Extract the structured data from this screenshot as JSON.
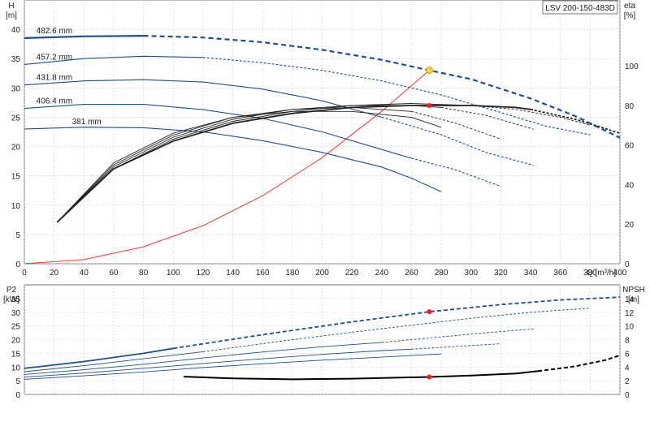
{
  "chart_data": [
    {
      "type": "line",
      "title": "",
      "model": "LSV 200-150-483D",
      "xlabel": "Q [m³/h]",
      "x_unit_label": "Q [m³/h]",
      "ylabel_left_name": "H",
      "ylabel_left_unit": "[m]",
      "ylabel_right_name": "eta",
      "ylabel_right_unit": "[%]",
      "xlim": [
        0,
        400
      ],
      "ylim": [
        0,
        45
      ],
      "ylim_right": [
        0,
        133.3
      ],
      "x_ticks": [
        0,
        20,
        40,
        60,
        80,
        100,
        120,
        140,
        160,
        180,
        200,
        220,
        240,
        260,
        280,
        300,
        320,
        340,
        360,
        380,
        400
      ],
      "y_ticks": [
        0,
        5,
        10,
        15,
        20,
        25,
        30,
        35,
        40
      ],
      "y_ticks_right": [
        0,
        20,
        40,
        60,
        80,
        100
      ],
      "grid": true,
      "head_curves": [
        {
          "name": "482.6 mm",
          "color": "#1f4e8c",
          "bold": true,
          "solid": [
            [
              0,
              38.5
            ],
            [
              40,
              38.8
            ],
            [
              80,
              38.9
            ]
          ],
          "dashed": [
            [
              80,
              38.9
            ],
            [
              120,
              38.6
            ],
            [
              160,
              37.8
            ],
            [
              200,
              36.5
            ],
            [
              240,
              34.8
            ],
            [
              272,
              33.0
            ],
            [
              300,
              31.5
            ],
            [
              340,
              28.2
            ],
            [
              370,
              25.2
            ],
            [
              400,
              21.5
            ]
          ]
        },
        {
          "name": "457.2 mm",
          "color": "#1f4e8c",
          "bold": false,
          "solid": [
            [
              0,
              34.0
            ],
            [
              40,
              35.0
            ],
            [
              80,
              35.4
            ],
            [
              120,
              35.2
            ]
          ],
          "dashed": [
            [
              120,
              35.2
            ],
            [
              160,
              34.3
            ],
            [
              200,
              33.0
            ],
            [
              240,
              31.2
            ],
            [
              280,
              28.8
            ],
            [
              320,
              25.8
            ],
            [
              350,
              23.5
            ],
            [
              380,
              22.0
            ]
          ]
        },
        {
          "name": "431.8 mm",
          "color": "#1f4e8c",
          "bold": false,
          "solid": [
            [
              0,
              30.5
            ],
            [
              40,
              31.2
            ],
            [
              80,
              31.4
            ],
            [
              120,
              31.0
            ],
            [
              160,
              29.8
            ],
            [
              200,
              27.8
            ],
            [
              240,
              25.0
            ]
          ],
          "dashed": [
            [
              240,
              25.0
            ],
            [
              280,
              22.0
            ],
            [
              310,
              19.0
            ],
            [
              342,
              16.8
            ]
          ]
        },
        {
          "name": "406.4 mm",
          "color": "#1f4e8c",
          "bold": false,
          "solid": [
            [
              0,
              26.5
            ],
            [
              40,
              27.2
            ],
            [
              80,
              27.2
            ],
            [
              120,
              26.3
            ],
            [
              160,
              24.8
            ],
            [
              200,
              22.5
            ],
            [
              240,
              19.5
            ],
            [
              260,
              18.0
            ]
          ],
          "dashed": [
            [
              260,
              18.0
            ],
            [
              290,
              16.0
            ],
            [
              320,
              13.2
            ]
          ]
        },
        {
          "name": "381 mm",
          "color": "#1f4e8c",
          "bold": false,
          "solid": [
            [
              0,
              23.0
            ],
            [
              40,
              23.3
            ],
            [
              80,
              23.2
            ],
            [
              120,
              22.5
            ],
            [
              160,
              21.0
            ],
            [
              200,
              19.0
            ],
            [
              240,
              16.5
            ],
            [
              260,
              14.6
            ],
            [
              280,
              12.3
            ]
          ],
          "dashed": []
        }
      ],
      "system_curve": {
        "color": "#ff3333",
        "points": [
          [
            0,
            0
          ],
          [
            40,
            0.7
          ],
          [
            80,
            2.9
          ],
          [
            120,
            6.5
          ],
          [
            160,
            11.6
          ],
          [
            200,
            18.1
          ],
          [
            240,
            26.0
          ],
          [
            272,
            33.0
          ]
        ]
      },
      "duty_point": {
        "x": 272,
        "y": 33.0,
        "color": "#ffd23f"
      },
      "efficiency_curves": [
        {
          "name": "482.6 mm",
          "solid": [
            [
              22,
              21
            ],
            [
              60,
              48
            ],
            [
              100,
              62
            ],
            [
              140,
              71
            ],
            [
              180,
              76
            ],
            [
              220,
              79
            ],
            [
              260,
              80
            ],
            [
              300,
              80
            ],
            [
              330,
              79
            ],
            [
              340,
              78
            ]
          ],
          "dashed": [
            [
              340,
              78
            ],
            [
              370,
              73
            ],
            [
              400,
              66
            ]
          ],
          "bold": true
        },
        {
          "name": "457.2 mm",
          "solid": [
            [
              22,
              21
            ],
            [
              60,
              48
            ],
            [
              100,
              63
            ],
            [
              140,
              72
            ],
            [
              180,
              77
            ],
            [
              220,
              80
            ],
            [
              260,
              81
            ],
            [
              300,
              80
            ]
          ],
          "dashed": [
            [
              300,
              80
            ],
            [
              330,
              78
            ],
            [
              360,
              74
            ],
            [
              380,
              70
            ]
          ],
          "bold": false
        },
        {
          "name": "431.8 mm",
          "solid": [
            [
              22,
              21
            ],
            [
              60,
              49
            ],
            [
              100,
              64
            ],
            [
              140,
              73
            ],
            [
              180,
              78
            ],
            [
              220,
              80
            ],
            [
              260,
              80
            ],
            [
              280,
              79
            ]
          ],
          "dashed": [
            [
              280,
              79
            ],
            [
              310,
              75
            ],
            [
              342,
              68
            ]
          ],
          "bold": false
        },
        {
          "name": "406.4 mm",
          "solid": [
            [
              22,
              21
            ],
            [
              60,
              50
            ],
            [
              100,
              65
            ],
            [
              140,
              74
            ],
            [
              180,
              78
            ],
            [
              220,
              79
            ],
            [
              260,
              77
            ]
          ],
          "dashed": [
            [
              260,
              77
            ],
            [
              290,
              71
            ],
            [
              320,
              63
            ]
          ],
          "bold": false
        },
        {
          "name": "381 mm",
          "solid": [
            [
              22,
              21
            ],
            [
              60,
              51
            ],
            [
              100,
              66
            ],
            [
              140,
              74
            ],
            [
              180,
              77
            ],
            [
              220,
              77
            ],
            [
              260,
              74
            ],
            [
              280,
              69
            ]
          ],
          "dashed": [],
          "bold": false
        }
      ],
      "eta_point": {
        "x": 272,
        "y": 80.0,
        "color": "#ff1a1a"
      }
    },
    {
      "type": "line",
      "title": "",
      "ylabel_left_name": "P2",
      "ylabel_left_unit": "[kW]",
      "ylabel_right_name": "NPSH",
      "ylabel_right_unit": "[m]",
      "xlim": [
        0,
        400
      ],
      "ylim": [
        0,
        40
      ],
      "ylim_right": [
        0,
        16
      ],
      "y_ticks": [
        0,
        5,
        10,
        15,
        20,
        25,
        30,
        35
      ],
      "y_ticks_right": [
        0,
        2,
        4,
        6,
        8,
        10,
        12,
        14
      ],
      "grid": true,
      "power_curves": [
        {
          "name": "482.6 mm",
          "bold": true,
          "solid": [
            [
              0,
              9.5
            ],
            [
              40,
              12.0
            ],
            [
              80,
              15.0
            ],
            [
              100,
              16.8
            ]
          ],
          "dashed": [
            [
              100,
              16.8
            ],
            [
              160,
              21.8
            ],
            [
              220,
              26.5
            ],
            [
              272,
              30.2
            ],
            [
              320,
              32.8
            ],
            [
              360,
              34.5
            ],
            [
              400,
              35.5
            ]
          ]
        },
        {
          "name": "457.2 mm",
          "bold": false,
          "solid": [
            [
              0,
              8.3
            ],
            [
              40,
              10.5
            ],
            [
              80,
              13.0
            ],
            [
              120,
              15.6
            ]
          ],
          "dashed": [
            [
              120,
              15.6
            ],
            [
              180,
              20.0
            ],
            [
              240,
              24.0
            ],
            [
              300,
              27.8
            ],
            [
              340,
              30.0
            ],
            [
              380,
              31.5
            ]
          ]
        },
        {
          "name": "431.8 mm",
          "bold": false,
          "solid": [
            [
              0,
              7.3
            ],
            [
              40,
              9.0
            ],
            [
              80,
              11.0
            ],
            [
              120,
              13.3
            ],
            [
              160,
              15.5
            ],
            [
              200,
              17.4
            ],
            [
              240,
              19.0
            ]
          ],
          "dashed": [
            [
              240,
              19.0
            ],
            [
              280,
              21.0
            ],
            [
              310,
              22.5
            ],
            [
              342,
              23.9
            ]
          ]
        },
        {
          "name": "406.4 mm",
          "bold": false,
          "solid": [
            [
              0,
              6.3
            ],
            [
              40,
              7.8
            ],
            [
              80,
              9.5
            ],
            [
              120,
              11.3
            ],
            [
              160,
              13.0
            ],
            [
              200,
              14.6
            ],
            [
              240,
              16.0
            ],
            [
              260,
              16.5
            ]
          ],
          "dashed": [
            [
              260,
              16.5
            ],
            [
              290,
              17.5
            ],
            [
              320,
              18.5
            ]
          ]
        },
        {
          "name": "381 mm",
          "bold": false,
          "solid": [
            [
              0,
              5.5
            ],
            [
              40,
              6.8
            ],
            [
              80,
              8.2
            ],
            [
              120,
              9.8
            ],
            [
              160,
              11.2
            ],
            [
              200,
              12.5
            ],
            [
              240,
              13.6
            ],
            [
              280,
              14.8
            ]
          ],
          "dashed": []
        }
      ],
      "npsh_curve": {
        "bold": true,
        "solid": [
          [
            107,
            2.6
          ],
          [
            140,
            2.35
          ],
          [
            180,
            2.2
          ],
          [
            220,
            2.3
          ],
          [
            272,
            2.55
          ],
          [
            300,
            2.75
          ],
          [
            330,
            3.05
          ],
          [
            345,
            3.4
          ]
        ],
        "dashed": [
          [
            345,
            3.4
          ],
          [
            370,
            4.1
          ],
          [
            390,
            5.0
          ],
          [
            400,
            5.7
          ]
        ]
      },
      "power_point": {
        "x": 272,
        "y": 30.2,
        "color": "#ff1a1a"
      },
      "npsh_point": {
        "x": 272,
        "y": 2.55,
        "color": "#ff1a1a"
      }
    }
  ]
}
